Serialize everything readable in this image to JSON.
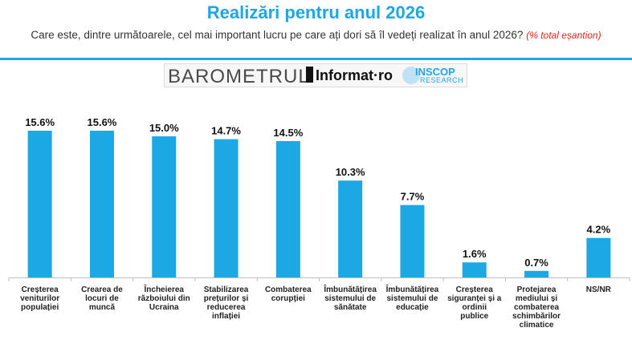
{
  "header": {
    "title": "Realizări pentru anul 2026",
    "subtitle": "Care este, dintre următoarele, cel mai important lucru pe care ați dori să îl vedeți realizat în anul 2026?",
    "note": "(% total eșantion)"
  },
  "logos": {
    "barometrul": "BAROMETRUL",
    "informat": "Informat·ro",
    "inscop": "INSCOP",
    "inscop_sub": "RESEARCH"
  },
  "colors": {
    "accent": "#1ca7e5",
    "note": "#e2231a",
    "bar": "#1ca7e5"
  },
  "chart_data": {
    "type": "bar",
    "categories": [
      "Creșterea veniturilor populației",
      "Crearea de locuri de muncă",
      "Încheierea războiului din Ucraina",
      "Stabilizarea prețurilor și reducerea inflației",
      "Combaterea corupției",
      "Îmbunătățirea sistemului de sănătate",
      "Îmbunătățirea sistemului de educație",
      "Creșterea siguranței și a ordinii publice",
      "Protejarea mediului și combaterea schimbărilor climatice",
      "NS/NR"
    ],
    "values": [
      15.6,
      15.6,
      15.0,
      14.7,
      14.5,
      10.3,
      7.7,
      1.6,
      0.7,
      4.2
    ],
    "labels": [
      "15.6%",
      "15.6%",
      "15.0%",
      "14.7%",
      "14.5%",
      "10.3%",
      "7.7%",
      "1.6%",
      "0.7%",
      "4.2%"
    ],
    "ylim": [
      0,
      16
    ],
    "grid": false,
    "legend": "none"
  }
}
